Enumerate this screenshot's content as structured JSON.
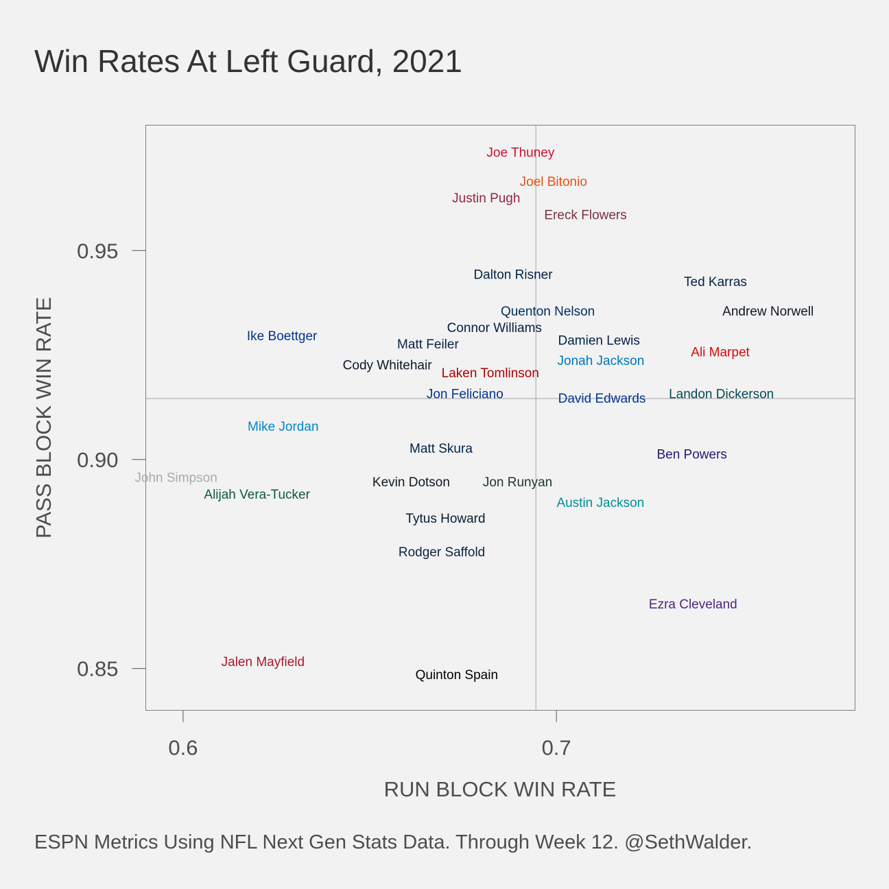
{
  "chart_data": {
    "type": "scatter",
    "title": "Win Rates At Left Guard, 2021",
    "caption": "ESPN Metrics Using NFL Next Gen Stats Data. Through Week 12. @SethWalder.",
    "xlabel": "RUN BLOCK WIN RATE",
    "ylabel": "PASS BLOCK WIN RATE",
    "xlim": [
      0.59,
      0.78
    ],
    "ylim": [
      0.84,
      0.98
    ],
    "x_ticks": [
      0.6,
      0.7
    ],
    "x_tick_labels": [
      "0.6",
      "0.7"
    ],
    "y_ticks": [
      0.85,
      0.9,
      0.95
    ],
    "y_tick_labels": [
      "0.85",
      "0.90",
      "0.95"
    ],
    "reference_lines": {
      "x": 0.6945,
      "y": 0.9146
    },
    "points": [
      {
        "name": "Joe Thuney",
        "x": 0.6904,
        "y": 0.9736,
        "color": "#c8102e"
      },
      {
        "name": "Joel Bitonio",
        "x": 0.6992,
        "y": 0.9666,
        "color": "#e35314"
      },
      {
        "name": "Justin Pugh",
        "x": 0.6812,
        "y": 0.9627,
        "color": "#97233f"
      },
      {
        "name": "Ereck Flowers",
        "x": 0.7078,
        "y": 0.9587,
        "color": "#773141"
      },
      {
        "name": "Dalton Risner",
        "x": 0.6884,
        "y": 0.9444,
        "color": "#002244"
      },
      {
        "name": "Ted Karras",
        "x": 0.7426,
        "y": 0.9427,
        "color": "#002244"
      },
      {
        "name": "Quenton Nelson",
        "x": 0.6977,
        "y": 0.9356,
        "color": "#002c5f"
      },
      {
        "name": "Andrew Norwell",
        "x": 0.7567,
        "y": 0.9356,
        "color": "#101820"
      },
      {
        "name": "Ike Boettger",
        "x": 0.6265,
        "y": 0.9297,
        "color": "#00338d"
      },
      {
        "name": "Connor Williams",
        "x": 0.6834,
        "y": 0.9317,
        "color": "#041e42"
      },
      {
        "name": "Matt Feiler",
        "x": 0.6656,
        "y": 0.9277,
        "color": "#0a2342"
      },
      {
        "name": "Damien Lewis",
        "x": 0.7114,
        "y": 0.9286,
        "color": "#002244"
      },
      {
        "name": "Ali Marpet",
        "x": 0.7439,
        "y": 0.9258,
        "color": "#d50a0a"
      },
      {
        "name": "Jonah Jackson",
        "x": 0.7119,
        "y": 0.9238,
        "color": "#0076b6"
      },
      {
        "name": "Cody Whitehair",
        "x": 0.6547,
        "y": 0.9227,
        "color": "#0b162a"
      },
      {
        "name": "Laken Tomlinson",
        "x": 0.6823,
        "y": 0.9208,
        "color": "#aa0000"
      },
      {
        "name": "Jon Feliciano",
        "x": 0.6755,
        "y": 0.9158,
        "color": "#00338d"
      },
      {
        "name": "David Edwards",
        "x": 0.7122,
        "y": 0.9148,
        "color": "#003594"
      },
      {
        "name": "Landon Dickerson",
        "x": 0.7442,
        "y": 0.9158,
        "color": "#004c54"
      },
      {
        "name": "Mike Jordan",
        "x": 0.6268,
        "y": 0.908,
        "color": "#0085ca"
      },
      {
        "name": "Matt Skura",
        "x": 0.6691,
        "y": 0.9028,
        "color": "#002244"
      },
      {
        "name": "Ben Powers",
        "x": 0.7363,
        "y": 0.9014,
        "color": "#241773"
      },
      {
        "name": "John Simpson",
        "x": 0.5981,
        "y": 0.8958,
        "color": "#a5acaf"
      },
      {
        "name": "Kevin Dotson",
        "x": 0.6611,
        "y": 0.8947,
        "color": "#101820"
      },
      {
        "name": "Jon Runyan",
        "x": 0.6896,
        "y": 0.8947,
        "color": "#203731"
      },
      {
        "name": "Alijah Vera-Tucker",
        "x": 0.6198,
        "y": 0.8918,
        "color": "#125740"
      },
      {
        "name": "Austin Jackson",
        "x": 0.7118,
        "y": 0.8898,
        "color": "#008e97"
      },
      {
        "name": "Tytus Howard",
        "x": 0.6703,
        "y": 0.886,
        "color": "#03202f"
      },
      {
        "name": "Rodger Saffold",
        "x": 0.6693,
        "y": 0.878,
        "color": "#0c2340"
      },
      {
        "name": "Ezra Cleveland",
        "x": 0.7366,
        "y": 0.8655,
        "color": "#4f2683"
      },
      {
        "name": "Jalen Mayfield",
        "x": 0.6214,
        "y": 0.8517,
        "color": "#a71930"
      },
      {
        "name": "Quinton Spain",
        "x": 0.6733,
        "y": 0.8486,
        "color": "#000000"
      }
    ]
  }
}
